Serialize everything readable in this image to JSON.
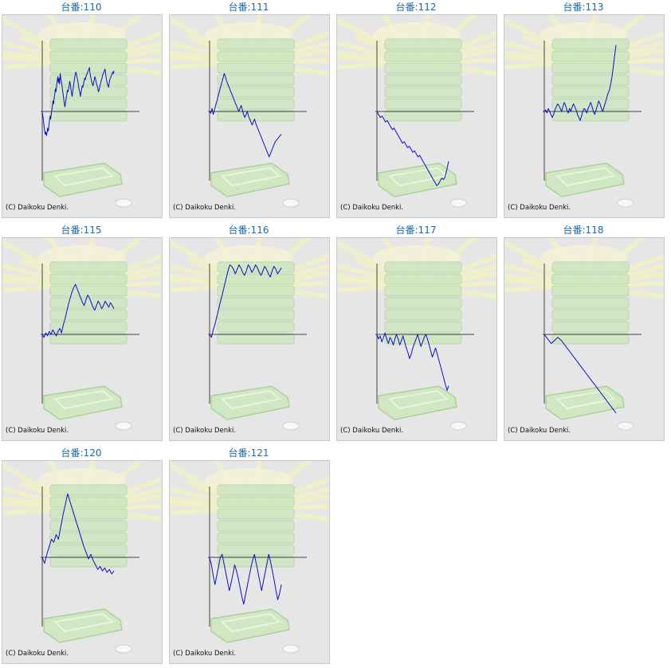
{
  "copyright": "(C) Daikoku Denki.",
  "colors": {
    "line": "#0a12c8",
    "title": "#1a6aa8",
    "axis": "#444444"
  },
  "chart_data": [
    {
      "type": "line",
      "title": "台番:110",
      "y": [
        0,
        -6,
        -12,
        -20,
        -26,
        -30,
        -27,
        -32,
        -28,
        -22,
        -26,
        -20,
        -12,
        -6,
        -10,
        -4,
        2,
        8,
        14,
        10,
        18,
        24,
        30,
        26,
        34,
        40,
        46,
        38,
        44,
        36,
        50,
        44,
        40,
        34,
        28,
        22,
        16,
        10,
        6,
        12,
        18,
        22,
        28,
        26,
        30,
        34,
        40,
        36,
        30,
        24,
        20,
        26,
        32,
        38,
        44,
        48,
        52,
        50,
        46,
        42,
        38,
        32,
        28,
        24,
        20,
        26,
        30,
        34,
        32,
        36,
        40,
        44,
        42,
        46,
        48,
        50,
        52,
        54,
        56,
        58,
        50,
        46,
        42,
        38,
        36,
        34,
        38,
        42,
        46,
        44,
        40,
        36,
        34,
        30,
        26,
        28,
        32,
        36,
        38,
        42,
        44,
        48,
        50,
        52,
        54,
        56,
        50,
        44,
        40,
        36,
        34,
        32,
        38,
        42,
        44,
        46,
        48,
        50,
        52,
        50,
        54
      ]
    },
    {
      "type": "line",
      "title": "台番:111",
      "y": [
        0,
        -2,
        4,
        -4,
        2,
        8,
        14,
        20,
        26,
        32,
        38,
        44,
        50,
        46,
        40,
        36,
        32,
        28,
        24,
        20,
        16,
        12,
        8,
        4,
        0,
        4,
        8,
        2,
        -4,
        -8,
        -4,
        0,
        -6,
        -10,
        -14,
        -18,
        -14,
        -10,
        -16,
        -20,
        -24,
        -28,
        -32,
        -36,
        -40,
        -44,
        -48,
        -52,
        -56,
        -60,
        -56,
        -52,
        -48,
        -44,
        -40,
        -38,
        -36,
        -34,
        -32,
        -30
      ]
    },
    {
      "type": "line",
      "title": "台番:112",
      "y": [
        0,
        -4,
        -8,
        -6,
        -10,
        -14,
        -12,
        -16,
        -20,
        -24,
        -22,
        -26,
        -30,
        -34,
        -38,
        -42,
        -40,
        -44,
        -48,
        -46,
        -50,
        -54,
        -52,
        -56,
        -60,
        -58,
        -62,
        -66,
        -70,
        -74,
        -78,
        -82,
        -86,
        -90,
        -94,
        -98,
        -96,
        -92,
        -88,
        -90,
        -86,
        -76,
        -66
      ]
    },
    {
      "type": "line",
      "title": "台番:113",
      "y": [
        0,
        2,
        -2,
        4,
        0,
        -4,
        -8,
        -4,
        2,
        6,
        10,
        8,
        4,
        0,
        6,
        12,
        8,
        2,
        -2,
        4,
        0,
        6,
        10,
        6,
        2,
        -4,
        -8,
        -12,
        -6,
        0,
        4,
        2,
        -2,
        4,
        8,
        12,
        6,
        0,
        -4,
        2,
        8,
        14,
        10,
        4,
        0,
        6,
        12,
        18,
        24,
        28,
        36,
        46,
        60,
        74,
        88
      ]
    },
    {
      "type": "line",
      "title": "台番:115",
      "y": [
        0,
        -4,
        2,
        -2,
        4,
        0,
        6,
        2,
        -2,
        4,
        8,
        2,
        12,
        20,
        30,
        40,
        48,
        56,
        62,
        66,
        60,
        54,
        48,
        42,
        38,
        46,
        52,
        48,
        42,
        36,
        32,
        38,
        44,
        40,
        34,
        38,
        44,
        40,
        36,
        42,
        38,
        34
      ]
    },
    {
      "type": "line",
      "title": "台番:116",
      "y": [
        0,
        -4,
        6,
        14,
        24,
        34,
        44,
        54,
        64,
        74,
        84,
        92,
        90,
        86,
        80,
        86,
        92,
        88,
        82,
        78,
        84,
        92,
        88,
        82,
        86,
        92,
        88,
        82,
        78,
        84,
        90,
        86,
        80,
        76,
        84,
        90,
        86,
        80,
        84,
        88
      ]
    },
    {
      "type": "line",
      "title": "台番:117",
      "y": [
        0,
        -6,
        -2,
        -10,
        -4,
        2,
        -6,
        -12,
        -4,
        -8,
        -14,
        -6,
        0,
        -6,
        -14,
        -8,
        -2,
        -10,
        -18,
        -24,
        -32,
        -26,
        -18,
        -12,
        -6,
        0,
        -8,
        -16,
        -10,
        -4,
        0,
        -6,
        -14,
        -22,
        -30,
        -24,
        -18,
        -26,
        -34,
        -42,
        -50,
        -58,
        -66,
        -74,
        -68
      ]
    },
    {
      "type": "line",
      "title": "台番:118",
      "y": [
        0,
        -6,
        -12,
        -8,
        -4,
        -8,
        -14,
        -20,
        -26,
        -32,
        -38,
        -44,
        -50,
        -56,
        -62,
        -68,
        -74,
        -80,
        -86,
        -92,
        -98,
        -104
      ]
    },
    {
      "type": "line",
      "title": "台番:120",
      "y": [
        0,
        -8,
        4,
        14,
        24,
        20,
        30,
        24,
        40,
        56,
        70,
        84,
        74,
        64,
        54,
        44,
        34,
        24,
        14,
        6,
        -2,
        4,
        -4,
        -10,
        -16,
        -12,
        -18,
        -14,
        -20,
        -16,
        -22,
        -18
      ]
    },
    {
      "type": "line",
      "title": "台番:121",
      "y": [
        0,
        -10,
        -24,
        -36,
        -24,
        -12,
        0,
        4,
        -8,
        -20,
        -32,
        -44,
        -34,
        -22,
        -10,
        -18,
        -28,
        -40,
        -52,
        -62,
        -50,
        -38,
        -26,
        -14,
        -4,
        4,
        -8,
        -20,
        -32,
        -44,
        -32,
        -20,
        -8,
        4,
        -6,
        -18,
        -30,
        -44,
        -56,
        -48,
        -36
      ]
    }
  ]
}
